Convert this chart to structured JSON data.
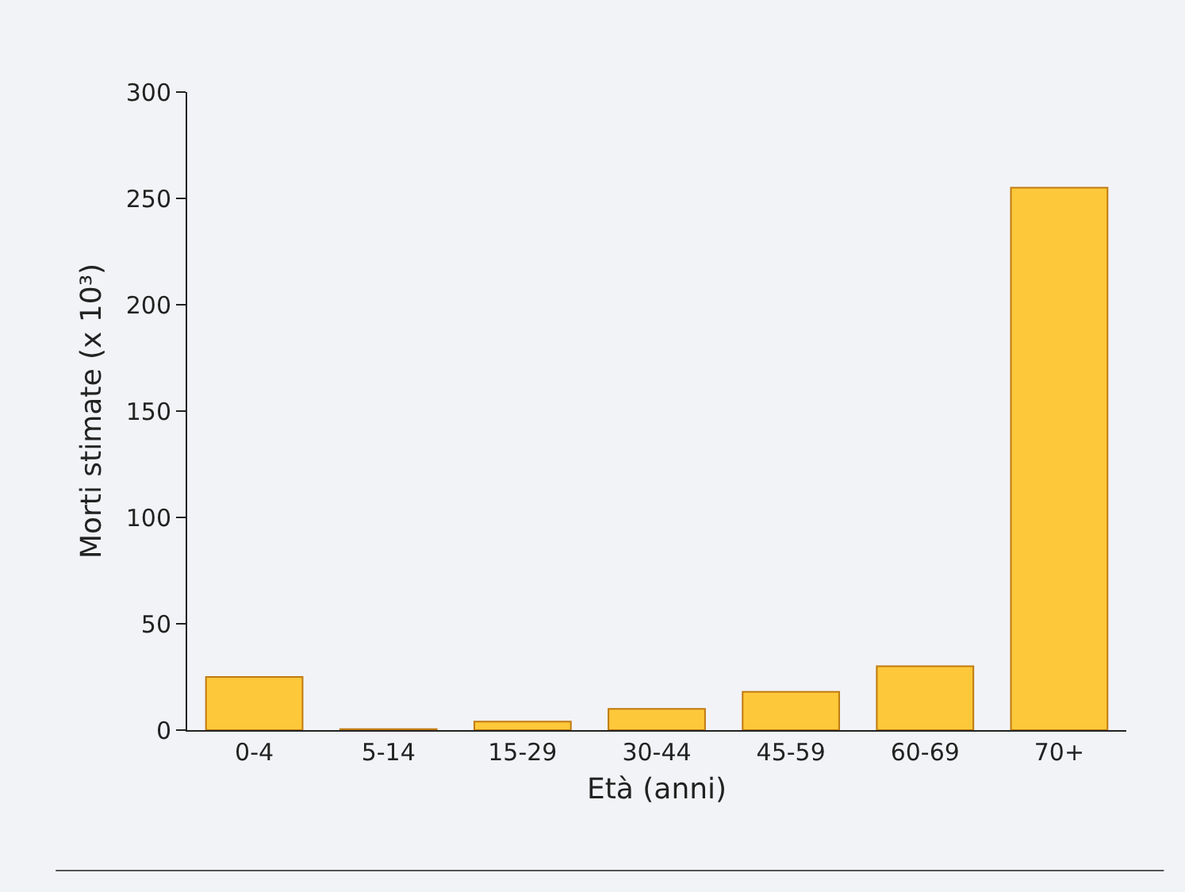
{
  "chart_data": {
    "type": "bar",
    "categories": [
      "0-4",
      "5-14",
      "15-29",
      "30-44",
      "45-59",
      "60-69",
      "70+"
    ],
    "values": [
      25,
      0.5,
      4,
      10,
      18,
      30,
      255
    ],
    "color": "#fdc83a",
    "xlabel": "Età (anni)",
    "ylabel": "Morti stimate (x 10³)",
    "ylim": [
      0,
      300
    ],
    "yticks": [
      0,
      50,
      100,
      150,
      200,
      250,
      300
    ],
    "grid": false
  }
}
